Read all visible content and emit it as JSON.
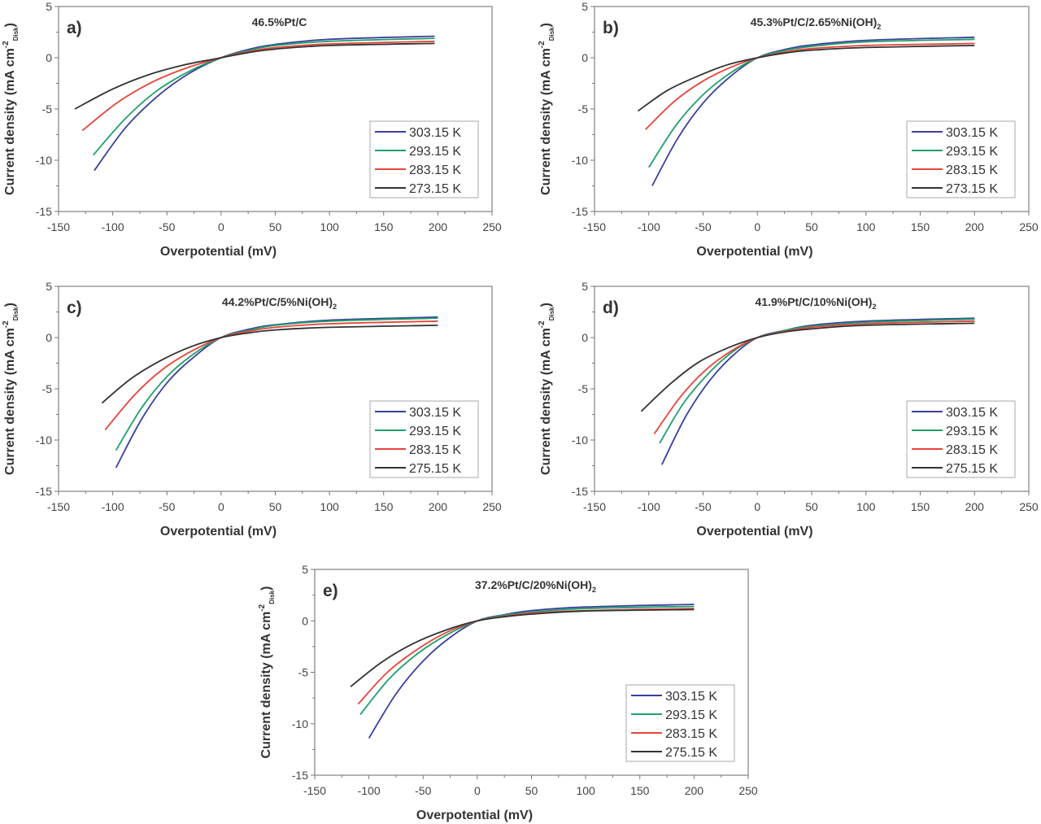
{
  "chart_data": [
    {
      "type": "line",
      "panel_label": "a)",
      "title_main": "46.5%Pt/C",
      "title_sub": "",
      "xlabel": "Overpotential (mV)",
      "ylabel_main": "Current density (mA cm",
      "ylabel_sup": "-2",
      "ylabel_sub": "Disk",
      "ylabel_end": ")",
      "xlim": [
        -150,
        250
      ],
      "ylim": [
        -15,
        5
      ],
      "xticks": [
        -150,
        -100,
        -50,
        0,
        50,
        100,
        150,
        200,
        250
      ],
      "yticks": [
        -15,
        -10,
        -5,
        0,
        5
      ],
      "grid": false,
      "legend_position": "bottom-right",
      "series": [
        {
          "name": "303.15 K",
          "color": "#3b3f9e",
          "x": [
            -117,
            -88,
            -58,
            -29,
            0,
            25,
            50,
            100,
            197
          ],
          "y": [
            -11,
            -6.8,
            -3.7,
            -1.5,
            0,
            0.8,
            1.3,
            1.8,
            2.1
          ]
        },
        {
          "name": "293.15 K",
          "color": "#1fa06a",
          "x": [
            -118,
            -88,
            -59,
            -29,
            0,
            25,
            50,
            100,
            197
          ],
          "y": [
            -9.5,
            -5.9,
            -3.2,
            -1.3,
            0,
            0.7,
            1.2,
            1.6,
            1.9
          ]
        },
        {
          "name": "283.15 K",
          "color": "#e8443a",
          "x": [
            -128,
            -96,
            -64,
            -32,
            0,
            25,
            50,
            100,
            197
          ],
          "y": [
            -7.1,
            -4.4,
            -2.4,
            -1.0,
            0,
            0.6,
            1.0,
            1.35,
            1.6
          ]
        },
        {
          "name": "273.15 K",
          "color": "#333333",
          "x": [
            -135,
            -101,
            -68,
            -34,
            0,
            25,
            50,
            100,
            197
          ],
          "y": [
            -5,
            -3.1,
            -1.7,
            -0.7,
            0,
            0.5,
            0.85,
            1.2,
            1.4
          ]
        }
      ]
    },
    {
      "type": "line",
      "panel_label": "b)",
      "title_main": "45.3%Pt/C/2.65%Ni(OH)",
      "title_sub": "2",
      "xlabel": "Overpotential (mV)",
      "ylabel_main": "Current density (mA cm",
      "ylabel_sup": "-2",
      "ylabel_sub": "Disk",
      "ylabel_end": ")",
      "xlim": [
        -150,
        250
      ],
      "ylim": [
        -15,
        5
      ],
      "xticks": [
        -150,
        -100,
        -50,
        0,
        50,
        100,
        150,
        200,
        250
      ],
      "yticks": [
        -15,
        -10,
        -5,
        0,
        5
      ],
      "grid": false,
      "legend_position": "bottom-right",
      "series": [
        {
          "name": "303.15 K",
          "color": "#3b3f9e",
          "x": [
            -97,
            -73,
            -49,
            -24,
            0,
            25,
            50,
            100,
            200
          ],
          "y": [
            -12.5,
            -7.8,
            -4.3,
            -1.75,
            0,
            0.8,
            1.25,
            1.7,
            2.0
          ]
        },
        {
          "name": "293.15 K",
          "color": "#1fa06a",
          "x": [
            -100,
            -75,
            -50,
            -25,
            0,
            25,
            50,
            100,
            200
          ],
          "y": [
            -10.7,
            -6.6,
            -3.6,
            -1.5,
            0,
            0.7,
            1.1,
            1.55,
            1.8
          ]
        },
        {
          "name": "283.15 K",
          "color": "#e8443a",
          "x": [
            -103,
            -77,
            -52,
            -26,
            0,
            25,
            50,
            100,
            200
          ],
          "y": [
            -7,
            -4.3,
            -2.4,
            -1.0,
            0,
            0.55,
            0.9,
            1.2,
            1.4
          ]
        },
        {
          "name": "273.15 K",
          "color": "#333333",
          "x": [
            -110,
            -83,
            -55,
            -28,
            0,
            25,
            50,
            100,
            200
          ],
          "y": [
            -5.2,
            -3.2,
            -1.8,
            -0.7,
            0,
            0.45,
            0.75,
            1.0,
            1.2
          ]
        }
      ]
    },
    {
      "type": "line",
      "panel_label": "c)",
      "title_main": "44.2%Pt/C/5%Ni(OH)",
      "title_sub": "2",
      "xlabel": "Overpotential (mV)",
      "ylabel_main": "Current density (mA cm",
      "ylabel_sup": "-2",
      "ylabel_sub": "Disk",
      "ylabel_end": ")",
      "xlim": [
        -150,
        250
      ],
      "ylim": [
        -15,
        5
      ],
      "xticks": [
        -150,
        -100,
        -50,
        0,
        50,
        100,
        150,
        200,
        250
      ],
      "yticks": [
        -15,
        -10,
        -5,
        0,
        5
      ],
      "grid": false,
      "legend_position": "bottom-right",
      "series": [
        {
          "name": "303.15 K",
          "color": "#3b3f9e",
          "x": [
            -97,
            -73,
            -49,
            -24,
            0,
            25,
            50,
            100,
            200
          ],
          "y": [
            -12.7,
            -7.9,
            -4.3,
            -1.8,
            0,
            0.8,
            1.25,
            1.7,
            2.0
          ]
        },
        {
          "name": "293.15 K",
          "color": "#1fa06a",
          "x": [
            -97,
            -73,
            -49,
            -24,
            0,
            25,
            50,
            100,
            200
          ],
          "y": [
            -11,
            -6.8,
            -3.7,
            -1.5,
            0,
            0.7,
            1.2,
            1.6,
            1.9
          ]
        },
        {
          "name": "283.15 K",
          "color": "#e8443a",
          "x": [
            -107,
            -80,
            -54,
            -27,
            0,
            25,
            50,
            100,
            200
          ],
          "y": [
            -9,
            -5.6,
            -3.1,
            -1.3,
            0,
            0.6,
            1.0,
            1.35,
            1.6
          ]
        },
        {
          "name": "275.15 K",
          "color": "#333333",
          "x": [
            -110,
            -83,
            -55,
            -28,
            0,
            25,
            50,
            100,
            200
          ],
          "y": [
            -6.4,
            -4.0,
            -2.2,
            -0.9,
            0,
            0.45,
            0.75,
            1.0,
            1.2
          ]
        }
      ]
    },
    {
      "type": "line",
      "panel_label": "d)",
      "title_main": "41.9%Pt/C/10%Ni(OH)",
      "title_sub": "2",
      "xlabel": "Overpotential (mV)",
      "ylabel_main": "Current density (mA cm",
      "ylabel_sup": "-2",
      "ylabel_sub": "Disk",
      "ylabel_end": ")",
      "xlim": [
        -150,
        250
      ],
      "ylim": [
        -15,
        5
      ],
      "xticks": [
        -150,
        -100,
        -50,
        0,
        50,
        100,
        150,
        200,
        250
      ],
      "yticks": [
        -15,
        -10,
        -5,
        0,
        5
      ],
      "grid": false,
      "legend_position": "bottom-right",
      "series": [
        {
          "name": "303.15 K",
          "color": "#3b3f9e",
          "x": [
            -88,
            -66,
            -44,
            -22,
            0,
            25,
            50,
            100,
            200
          ],
          "y": [
            -12.4,
            -7.7,
            -4.2,
            -1.7,
            0,
            0.7,
            1.2,
            1.6,
            1.9
          ]
        },
        {
          "name": "293.15 K",
          "color": "#1fa06a",
          "x": [
            -90,
            -68,
            -45,
            -23,
            0,
            25,
            50,
            100,
            200
          ],
          "y": [
            -10.3,
            -6.4,
            -3.5,
            -1.4,
            0,
            0.7,
            1.1,
            1.5,
            1.8
          ]
        },
        {
          "name": "283.15 K",
          "color": "#e8443a",
          "x": [
            -95,
            -71,
            -48,
            -24,
            0,
            25,
            50,
            100,
            200
          ],
          "y": [
            -9.4,
            -5.8,
            -3.2,
            -1.3,
            0,
            0.6,
            1.0,
            1.35,
            1.6
          ]
        },
        {
          "name": "275.15 K",
          "color": "#333333",
          "x": [
            -107,
            -80,
            -54,
            -27,
            0,
            25,
            50,
            100,
            200
          ],
          "y": [
            -7.2,
            -4.5,
            -2.4,
            -1.0,
            0,
            0.55,
            0.85,
            1.2,
            1.4
          ]
        }
      ]
    },
    {
      "type": "line",
      "panel_label": "e)",
      "title_main": "37.2%Pt/C/20%Ni(OH)",
      "title_sub": "2",
      "xlabel": "Overpotential (mV)",
      "ylabel_main": "Current density (mA cm",
      "ylabel_sup": "-2",
      "ylabel_sub": "Disk",
      "ylabel_end": ")",
      "xlim": [
        -150,
        250
      ],
      "ylim": [
        -15,
        5
      ],
      "xticks": [
        -150,
        -100,
        -50,
        0,
        50,
        100,
        150,
        200,
        250
      ],
      "yticks": [
        -15,
        -10,
        -5,
        0,
        5
      ],
      "grid": false,
      "legend_position": "bottom-right",
      "series": [
        {
          "name": "303.15 K",
          "color": "#3b3f9e",
          "x": [
            -100,
            -75,
            -50,
            -25,
            0,
            25,
            50,
            100,
            200
          ],
          "y": [
            -11.4,
            -7.1,
            -3.9,
            -1.6,
            0,
            0.6,
            1.0,
            1.35,
            1.6
          ]
        },
        {
          "name": "293.15 K",
          "color": "#1fa06a",
          "x": [
            -108,
            -81,
            -54,
            -27,
            0,
            25,
            50,
            100,
            200
          ],
          "y": [
            -9.1,
            -5.6,
            -3.1,
            -1.3,
            0,
            0.55,
            0.85,
            1.2,
            1.4
          ]
        },
        {
          "name": "283.15 K",
          "color": "#e8443a",
          "x": [
            -110,
            -83,
            -55,
            -28,
            0,
            25,
            50,
            100,
            200
          ],
          "y": [
            -8.1,
            -5.0,
            -2.75,
            -1.1,
            0,
            0.45,
            0.75,
            1.0,
            1.2
          ]
        },
        {
          "name": "275.15 K",
          "color": "#333333",
          "x": [
            -117,
            -88,
            -59,
            -29,
            0,
            25,
            50,
            100,
            200
          ],
          "y": [
            -6.4,
            -4.0,
            -2.2,
            -0.9,
            0,
            0.4,
            0.65,
            0.95,
            1.1
          ]
        }
      ]
    }
  ]
}
